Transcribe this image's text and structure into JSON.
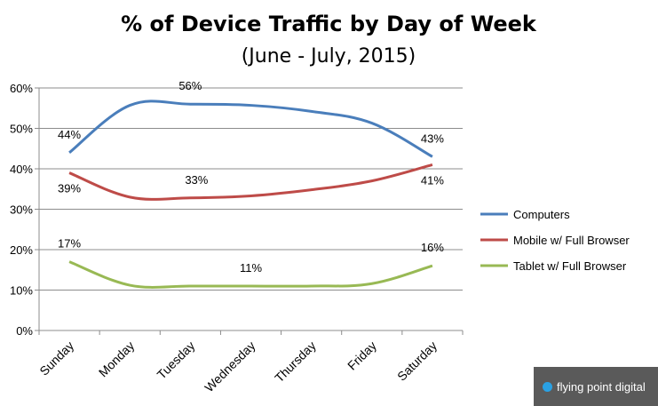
{
  "chart_data": {
    "type": "line",
    "title": "% of Device Traffic by Day of Week",
    "subtitle": "(June - July, 2015)",
    "categories": [
      "Sunday",
      "Monday",
      "Tuesday",
      "Wednesday",
      "Thursday",
      "Friday",
      "Saturday"
    ],
    "ylim": [
      0,
      60
    ],
    "yticks": [
      "0%",
      "10%",
      "20%",
      "30%",
      "40%",
      "50%",
      "60%"
    ],
    "grid": true,
    "legend_position": "right",
    "series": [
      {
        "name": "Computers",
        "color": "#4a7ebb",
        "values": [
          44,
          55.7,
          56,
          55.7,
          54.2,
          51.3,
          43
        ],
        "labels": [
          {
            "index": 0,
            "text": "44%"
          },
          {
            "index": 2,
            "text": "56%"
          },
          {
            "index": 6,
            "text": "43%"
          }
        ]
      },
      {
        "name": "Mobile w/ Full Browser",
        "color": "#be4b48",
        "values": [
          39,
          33,
          32.8,
          33.3,
          34.8,
          37,
          41
        ],
        "labels": [
          {
            "index": 0,
            "text": "39%"
          },
          {
            "index": 2,
            "text": "33%"
          },
          {
            "index": 6,
            "text": "41%"
          }
        ]
      },
      {
        "name": "Tablet w/ Full Browser",
        "color": "#98b954",
        "values": [
          17,
          11.2,
          11,
          11,
          11,
          11.6,
          16
        ],
        "labels": [
          {
            "index": 0,
            "text": "17%"
          },
          {
            "index": 3,
            "text": "11%"
          },
          {
            "index": 6,
            "text": "16%"
          }
        ]
      }
    ]
  },
  "logo": {
    "text": "flying point digital",
    "dot_icon": "circle-logo-icon"
  }
}
